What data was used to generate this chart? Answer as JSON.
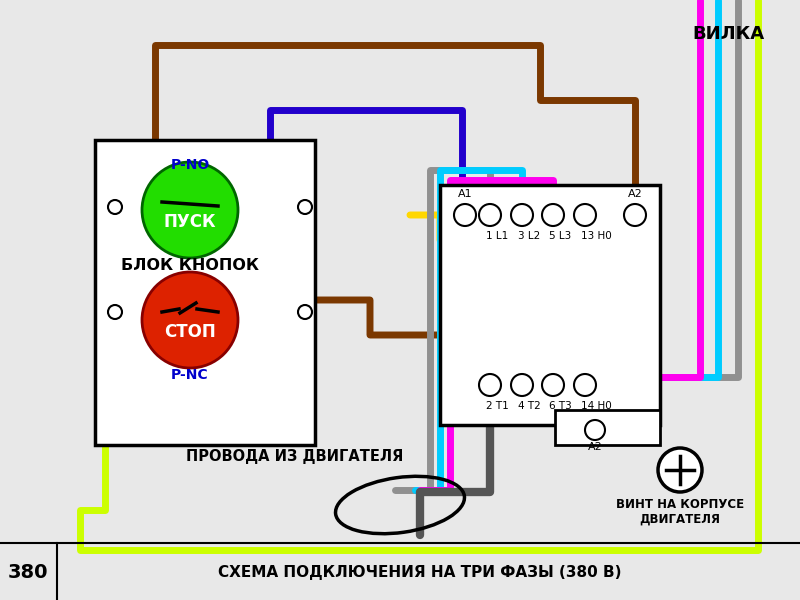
{
  "bg_color": "#e8e8e8",
  "title_bottom": "СХЕМА ПОДКЛЮЧЕНИЯ НА ТРИ ФАЗЫ (380 В)",
  "label_380": "380",
  "label_vilka": "ВИЛКА",
  "label_vint": "ВИНТ НА КОРПУСЕ\nДВИГАТЕЛЯ",
  "label_provoda": "ПРОВОДА ИЗ ДВИГАТЕЛЯ",
  "label_blok": "БЛОК КНОПОК",
  "label_pusk": "ПУСК",
  "label_stop": "СТОП",
  "label_p_no": "P-NO",
  "label_p_nc": "P-NC",
  "brown": "#7B3800",
  "blue_d": "#2200CC",
  "yellow": "#FFD700",
  "gray": "#909090",
  "cyan": "#00CCFF",
  "magenta": "#FF00EE",
  "gy": "#CCFF00",
  "dark_gray": "#555555",
  "lw": 5
}
